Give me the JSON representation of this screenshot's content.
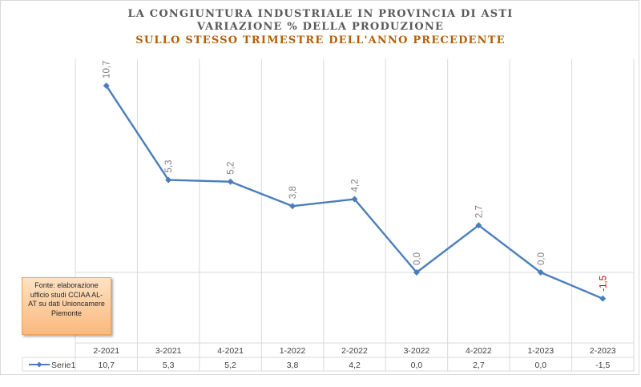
{
  "title": {
    "line1": "LA CONGIUNTURA INDUSTRIALE IN PROVINCIA DI ASTI",
    "line2": "VARIAZIONE % DELLA PRODUZIONE",
    "line3": "SULLO STESSO TRIMESTRE DELL'ANNO PRECEDENTE"
  },
  "source_note": "Fonte: elaborazione ufficio studi CCIAA AL-AT su dati Unioncamere Piemonte",
  "colors": {
    "line": "#4a7ebb",
    "label": "#7f7f7f",
    "negative_label": "#c00000",
    "title_accent": "#b45f06"
  },
  "chart_data": {
    "type": "line",
    "categories": [
      "2-2021",
      "3-2021",
      "4-2021",
      "1-2022",
      "2-2022",
      "3-2022",
      "4-2022",
      "1-2023",
      "2-2023"
    ],
    "series": [
      {
        "name": "Serie1",
        "values": [
          10.7,
          5.3,
          5.2,
          3.8,
          4.2,
          0.0,
          2.7,
          0.0,
          -1.5
        ]
      }
    ],
    "value_labels": [
      "10,7",
      "5,3",
      "5,2",
      "3,8",
      "4,2",
      "0,0",
      "2,7",
      "0,0",
      "-1,5"
    ],
    "ylim": [
      -4,
      12
    ],
    "grid": "vertical",
    "legend": "data-table",
    "xlabel": "",
    "ylabel": ""
  }
}
